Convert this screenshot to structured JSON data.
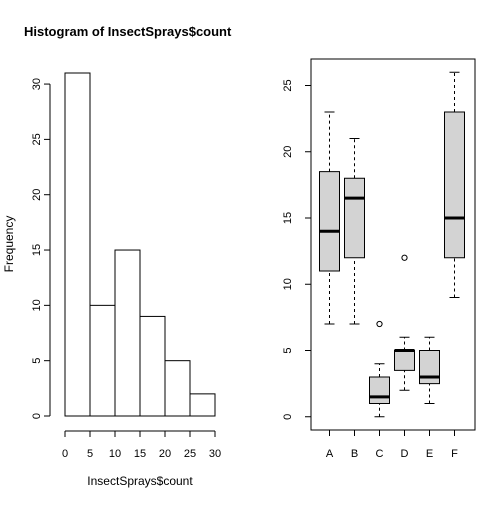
{
  "chart_data": [
    {
      "type": "bar",
      "title": "Histogram of InsectSprays$count",
      "xlabel": "InsectSprays$count",
      "ylabel": "Frequency",
      "bins": [
        [
          0,
          5
        ],
        [
          5,
          10
        ],
        [
          10,
          15
        ],
        [
          15,
          20
        ],
        [
          20,
          25
        ],
        [
          25,
          30
        ]
      ],
      "values": [
        31,
        10,
        15,
        9,
        5,
        2
      ],
      "xticks": [
        "0",
        "5",
        "10",
        "15",
        "20",
        "25",
        "30"
      ],
      "yticks": [
        "0",
        "5",
        "10",
        "15",
        "20",
        "25",
        "30"
      ],
      "xlim": [
        0,
        30
      ],
      "ylim": [
        0,
        31
      ],
      "grid": false,
      "colors": {
        "bar_fill": "#ffffff",
        "stroke": "#000000"
      }
    },
    {
      "type": "boxplot",
      "categories": [
        "A",
        "B",
        "C",
        "D",
        "E",
        "F"
      ],
      "boxes": [
        {
          "name": "A",
          "whisker_low": 7,
          "q1": 11,
          "median": 14,
          "q3": 18.5,
          "whisker_high": 23,
          "outliers": []
        },
        {
          "name": "B",
          "whisker_low": 7,
          "q1": 12,
          "median": 16.5,
          "q3": 18,
          "whisker_high": 21,
          "outliers": []
        },
        {
          "name": "C",
          "whisker_low": 0,
          "q1": 1,
          "median": 1.5,
          "q3": 3,
          "whisker_high": 4,
          "outliers": [
            7
          ]
        },
        {
          "name": "D",
          "whisker_low": 2,
          "q1": 3.5,
          "median": 5,
          "q3": 5,
          "whisker_high": 6,
          "outliers": [
            12
          ]
        },
        {
          "name": "E",
          "whisker_low": 1,
          "q1": 2.5,
          "median": 3,
          "q3": 5,
          "whisker_high": 6,
          "outliers": []
        },
        {
          "name": "F",
          "whisker_low": 9,
          "q1": 12,
          "median": 15,
          "q3": 23,
          "whisker_high": 26,
          "outliers": []
        }
      ],
      "yticks": [
        "0",
        "5",
        "10",
        "15",
        "20",
        "25"
      ],
      "ylim": [
        -1,
        27
      ],
      "grid": false,
      "colors": {
        "box_fill": "#d3d3d3",
        "stroke": "#000000"
      }
    }
  ]
}
